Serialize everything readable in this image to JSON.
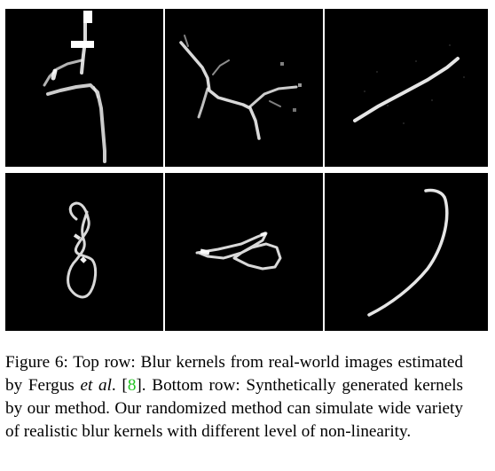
{
  "caption": {
    "prefix": "Figure 6: Top row: Blur kernels from real-world images estimated by Fergus ",
    "etal": "et al",
    "after_etal": ". [",
    "ref": "8",
    "suffix": "]. Bottom row: Synthetically generated kernels by our method. Our randomized method can simulate wide variety of realistic blur kernels with different level of non-linearity."
  },
  "figure": {
    "rows": [
      {
        "label": "Top row",
        "kernels": [
          "real-kernel-1",
          "real-kernel-2",
          "real-kernel-3"
        ]
      },
      {
        "label": "Bottom row",
        "kernels": [
          "synthetic-kernel-1",
          "synthetic-kernel-2",
          "synthetic-kernel-3"
        ]
      }
    ]
  }
}
